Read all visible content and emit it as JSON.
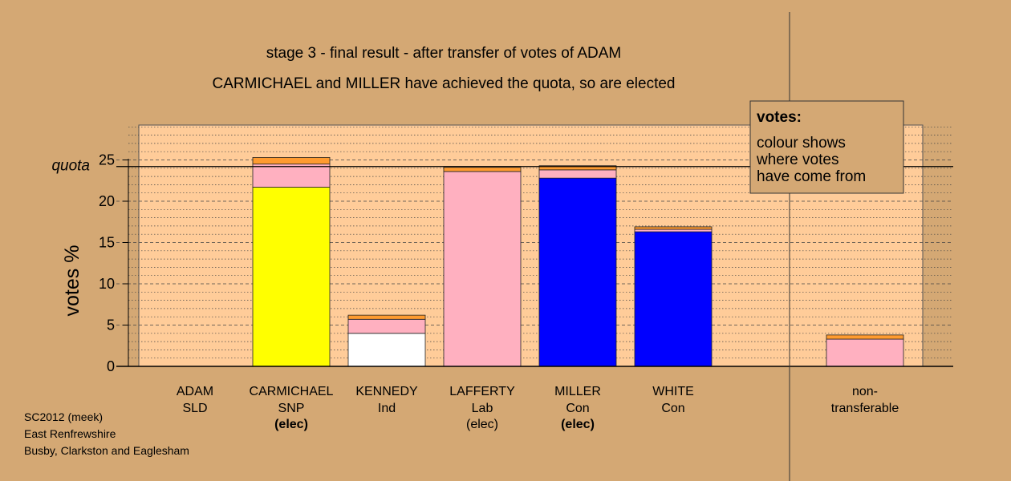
{
  "chart_data": {
    "type": "bar",
    "stacked": true,
    "title": "stage 3 - final result - after transfer of votes of ADAM",
    "subtitle": "CARMICHAEL and MILLER have achieved the quota, so are elected",
    "ylabel": "votes %",
    "ylim": [
      0,
      29
    ],
    "yticks": [
      0,
      5,
      10,
      15,
      20,
      25
    ],
    "quota": 24.2,
    "quota_label": "quota",
    "grid": true,
    "legend": {
      "placement": "top-right",
      "title": "votes:",
      "lines": [
        "colour shows",
        "where votes",
        "have come from"
      ]
    },
    "candidates": [
      {
        "name": "ADAM",
        "party": "SLD",
        "status": "",
        "status_bold": false,
        "segments": []
      },
      {
        "name": "CARMICHAEL",
        "party": "SNP",
        "status": "(elec)",
        "status_bold": true,
        "segments": [
          {
            "value": 21.7,
            "color": "#ffff00"
          },
          {
            "value": 2.8,
            "color": "#ffb0c0"
          },
          {
            "value": 0.8,
            "color": "#ff9b30"
          }
        ]
      },
      {
        "name": "KENNEDY",
        "party": "Ind",
        "status": "",
        "status_bold": false,
        "segments": [
          {
            "value": 4.0,
            "color": "#ffffff"
          },
          {
            "value": 1.7,
            "color": "#ffb0c0"
          },
          {
            "value": 0.5,
            "color": "#ff9b30"
          }
        ]
      },
      {
        "name": "LAFFERTY",
        "party": "Lab",
        "status": "(elec)",
        "status_bold": false,
        "segments": [
          {
            "value": 23.6,
            "color": "#ffb0c0"
          },
          {
            "value": 0.5,
            "color": "#ff9b30"
          }
        ]
      },
      {
        "name": "MILLER",
        "party": "Con",
        "status": "(elec)",
        "status_bold": true,
        "segments": [
          {
            "value": 22.8,
            "color": "#0000ff"
          },
          {
            "value": 1.0,
            "color": "#ffb0c0"
          },
          {
            "value": 0.5,
            "color": "#ff9b30"
          }
        ]
      },
      {
        "name": "WHITE",
        "party": "Con",
        "status": "",
        "status_bold": false,
        "segments": [
          {
            "value": 16.3,
            "color": "#0000ff"
          },
          {
            "value": 0.3,
            "color": "#ffb0c0"
          },
          {
            "value": 0.3,
            "color": "#ff9b30"
          }
        ]
      }
    ],
    "nontransferable": {
      "label_line1": "non-",
      "label_line2": "transferable",
      "segments": [
        {
          "value": 3.3,
          "color": "#ffb0c0"
        },
        {
          "value": 0.5,
          "color": "#ff9b30"
        }
      ]
    }
  },
  "footer": [
    "SC2012 (meek)",
    "East Renfrewshire",
    "Busby, Clarkston and Eaglesham"
  ],
  "colors": {
    "page_background": "#d4a874",
    "plot_background": "#ffcc99"
  }
}
